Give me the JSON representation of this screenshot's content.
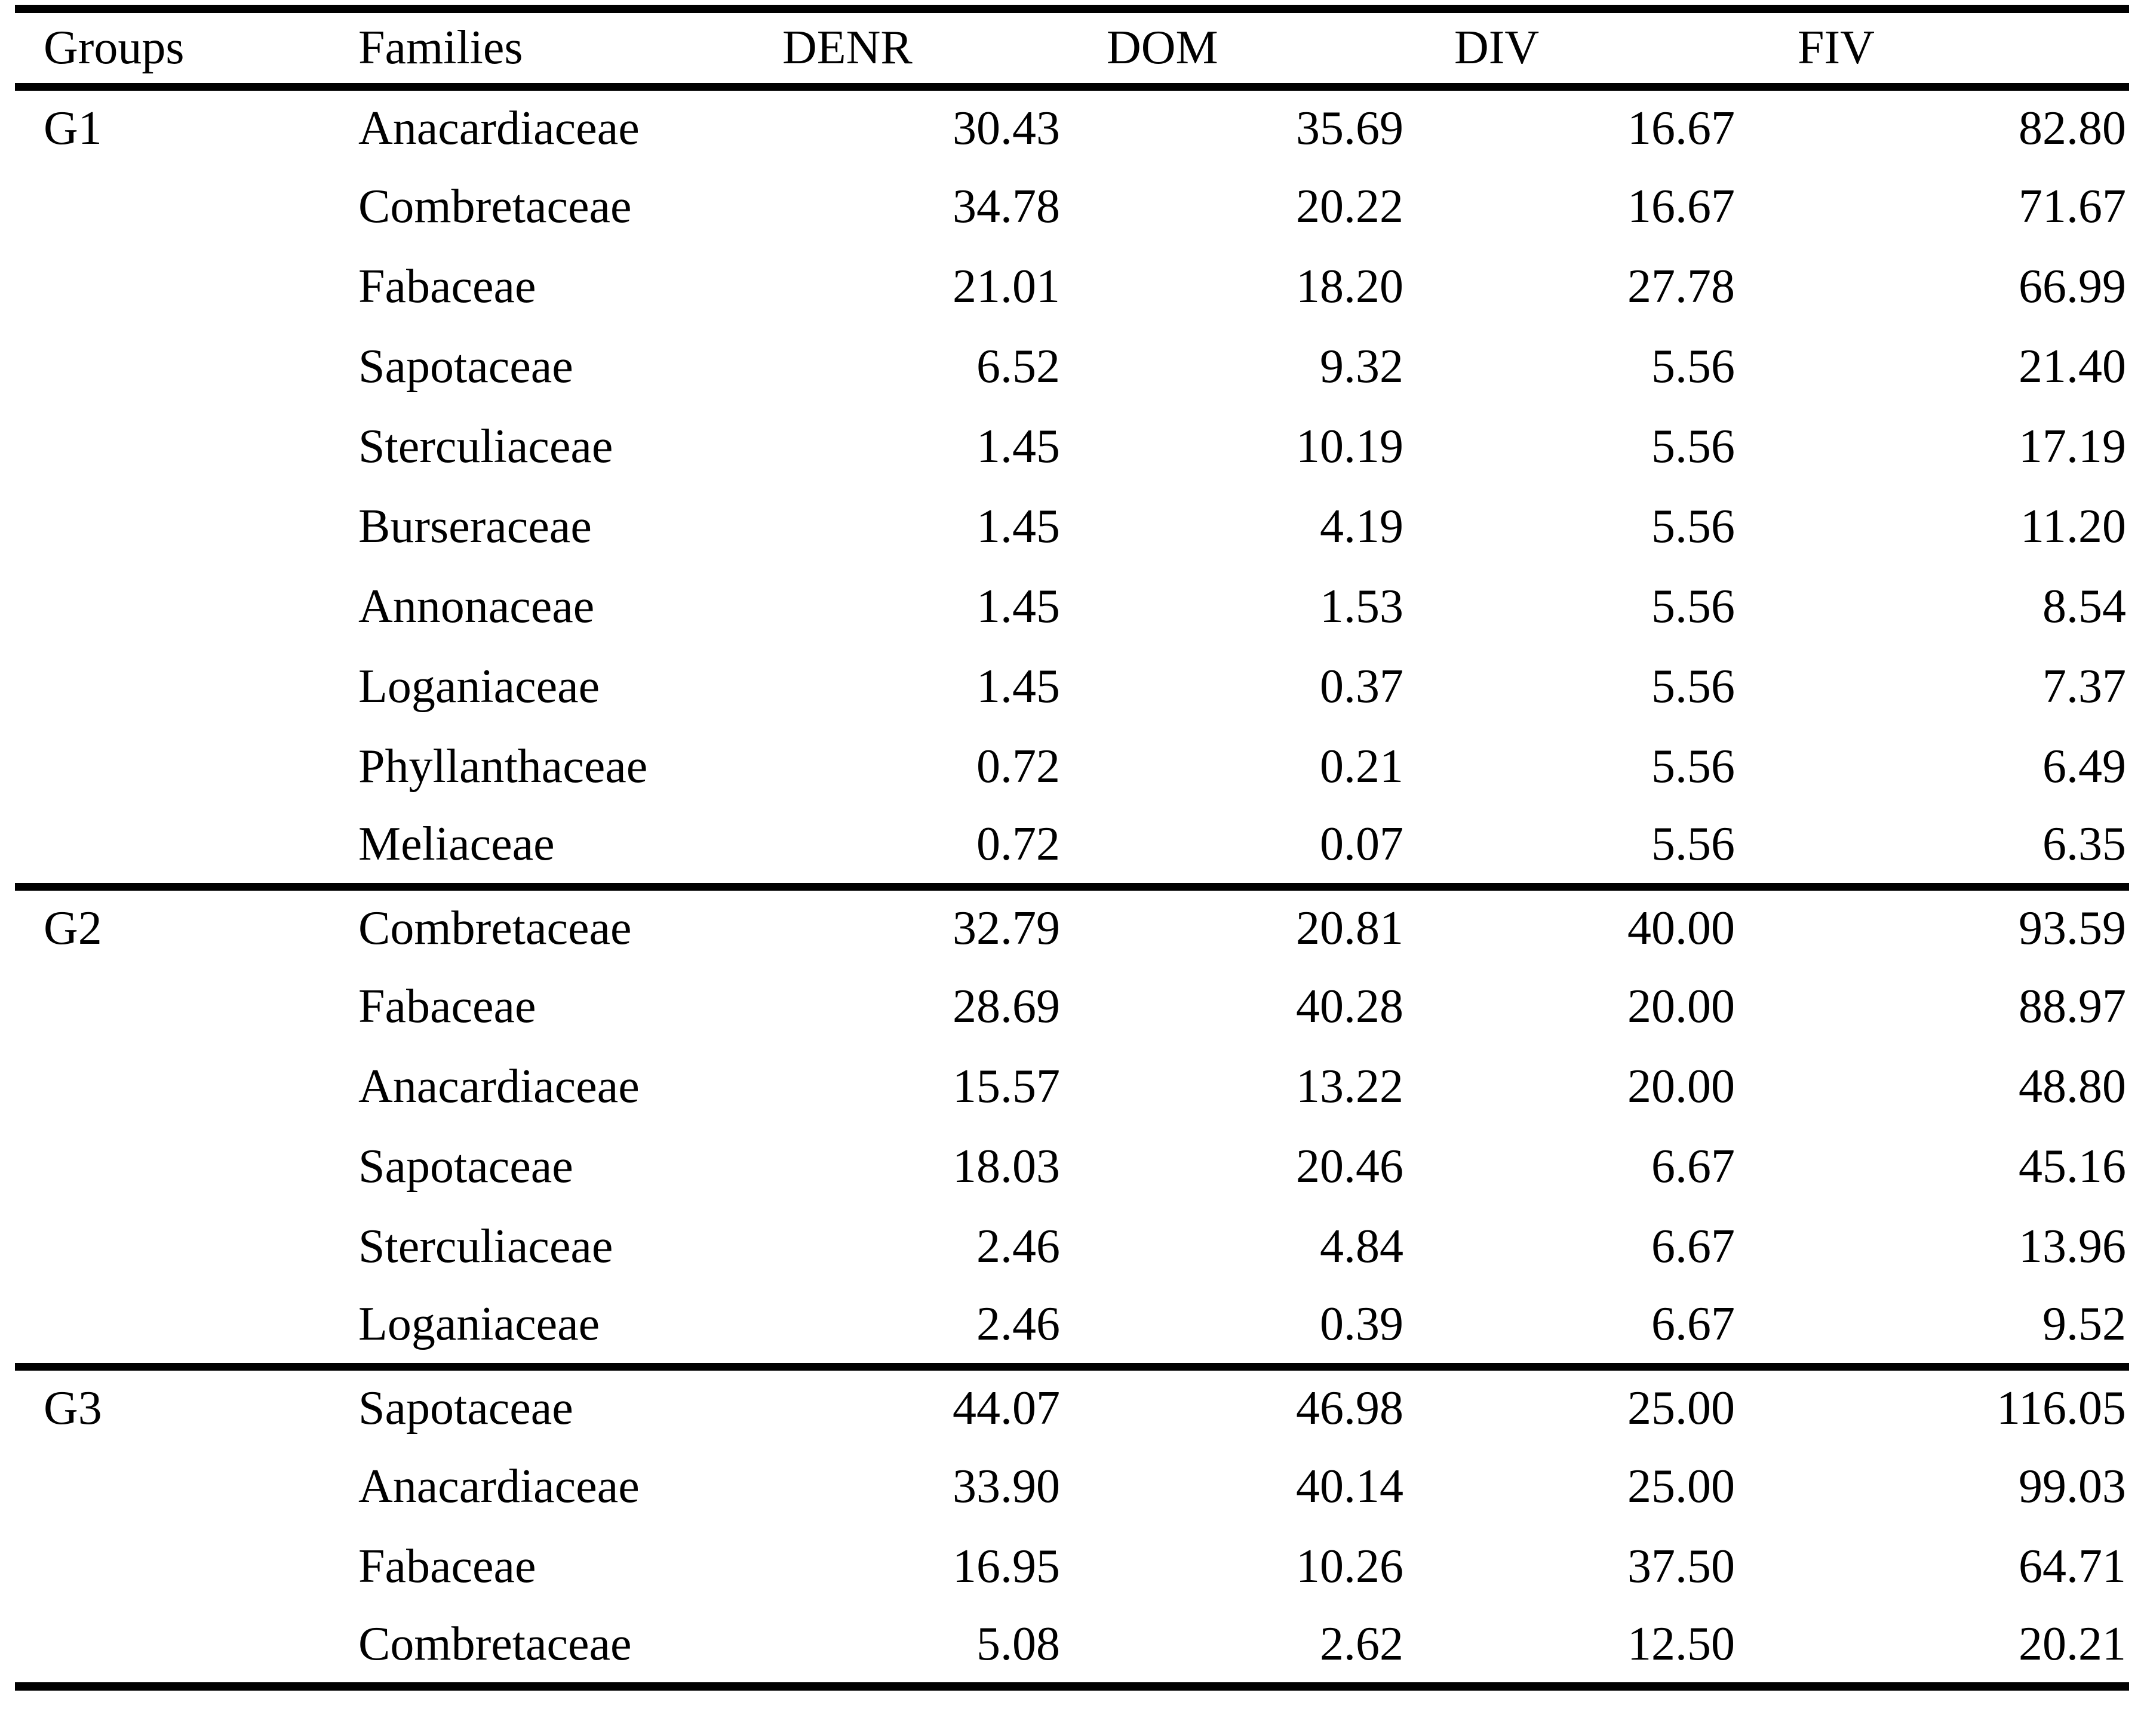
{
  "page": {
    "background_color": "#ffffff",
    "text_color": "#000000",
    "rule_color": "#000000"
  },
  "table": {
    "columns": [
      "Groups",
      "Families",
      "DENR",
      "DOM",
      "DIV",
      "FIV"
    ],
    "groups": [
      {
        "name": "G1",
        "rows": [
          {
            "family": "Anacardiaceae",
            "denr": "30.43",
            "dom": "35.69",
            "div": "16.67",
            "fiv": "82.80"
          },
          {
            "family": "Combretaceae",
            "denr": "34.78",
            "dom": "20.22",
            "div": "16.67",
            "fiv": "71.67"
          },
          {
            "family": "Fabaceae",
            "denr": "21.01",
            "dom": "18.20",
            "div": "27.78",
            "fiv": "66.99"
          },
          {
            "family": "Sapotaceae",
            "denr": "6.52",
            "dom": "9.32",
            "div": "5.56",
            "fiv": "21.40"
          },
          {
            "family": "Sterculiaceae",
            "denr": "1.45",
            "dom": "10.19",
            "div": "5.56",
            "fiv": "17.19"
          },
          {
            "family": "Burseraceae",
            "denr": "1.45",
            "dom": "4.19",
            "div": "5.56",
            "fiv": "11.20"
          },
          {
            "family": "Annonaceae",
            "denr": "1.45",
            "dom": "1.53",
            "div": "5.56",
            "fiv": "8.54"
          },
          {
            "family": "Loganiaceae",
            "denr": "1.45",
            "dom": "0.37",
            "div": "5.56",
            "fiv": "7.37"
          },
          {
            "family": "Phyllanthaceae",
            "denr": "0.72",
            "dom": "0.21",
            "div": "5.56",
            "fiv": "6.49"
          },
          {
            "family": "Meliaceae",
            "denr": "0.72",
            "dom": "0.07",
            "div": "5.56",
            "fiv": "6.35"
          }
        ]
      },
      {
        "name": "G2",
        "rows": [
          {
            "family": "Combretaceae",
            "denr": "32.79",
            "dom": "20.81",
            "div": "40.00",
            "fiv": "93.59"
          },
          {
            "family": "Fabaceae",
            "denr": "28.69",
            "dom": "40.28",
            "div": "20.00",
            "fiv": "88.97"
          },
          {
            "family": "Anacardiaceae",
            "denr": "15.57",
            "dom": "13.22",
            "div": "20.00",
            "fiv": "48.80"
          },
          {
            "family": "Sapotaceae",
            "denr": "18.03",
            "dom": "20.46",
            "div": "6.67",
            "fiv": "45.16"
          },
          {
            "family": "Sterculiaceae",
            "denr": "2.46",
            "dom": "4.84",
            "div": "6.67",
            "fiv": "13.96"
          },
          {
            "family": "Loganiaceae",
            "denr": "2.46",
            "dom": "0.39",
            "div": "6.67",
            "fiv": "9.52"
          }
        ]
      },
      {
        "name": "G3",
        "rows": [
          {
            "family": "Sapotaceae",
            "denr": "44.07",
            "dom": "46.98",
            "div": "25.00",
            "fiv": "116.05"
          },
          {
            "family": "Anacardiaceae",
            "denr": "33.90",
            "dom": "40.14",
            "div": "25.00",
            "fiv": "99.03"
          },
          {
            "family": "Fabaceae",
            "denr": "16.95",
            "dom": "10.26",
            "div": "37.50",
            "fiv": "64.71"
          },
          {
            "family": "Combretaceae",
            "denr": "5.08",
            "dom": "2.62",
            "div": "12.50",
            "fiv": "20.21"
          }
        ]
      }
    ]
  }
}
